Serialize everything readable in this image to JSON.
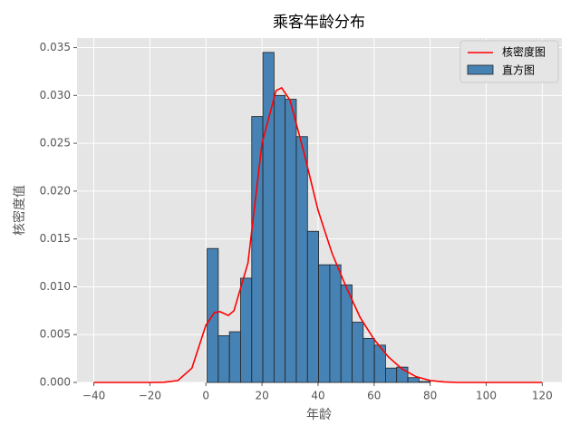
{
  "chart_data": {
    "type": "histogram",
    "title": "乘客年龄分布",
    "xlabel": "年龄",
    "ylabel": "核密度值",
    "xlim": [
      -46,
      127
    ],
    "ylim": [
      0,
      0.036
    ],
    "xticks": [
      {
        "value": -40,
        "label": "−40"
      },
      {
        "value": -20,
        "label": "−20"
      },
      0,
      20,
      40,
      60,
      80,
      100,
      120
    ],
    "yticks": [
      {
        "value": 0,
        "label": "0.000"
      },
      {
        "value": 0.005,
        "label": "0.005"
      },
      {
        "value": 0.01,
        "label": "0.010"
      },
      {
        "value": 0.015,
        "label": "0.015"
      },
      {
        "value": 0.02,
        "label": "0.020"
      },
      {
        "value": 0.025,
        "label": "0.025"
      },
      {
        "value": 0.03,
        "label": "0.030"
      },
      {
        "value": 0.035,
        "label": "0.035"
      }
    ],
    "grid": true,
    "legend": "upper right",
    "hist": {
      "name": "直方图",
      "color": "#4682b4",
      "bins": [
        0.42,
        4.399,
        8.378,
        12.357,
        16.336,
        20.315,
        24.294,
        28.273,
        32.252,
        36.231,
        40.21,
        44.189,
        48.168,
        52.147,
        56.126,
        60.105,
        64.084,
        68.063,
        72.042,
        76.021,
        80.0
      ],
      "values": [
        0.014,
        0.0049,
        0.0053,
        0.0109,
        0.0278,
        0.0345,
        0.03,
        0.0296,
        0.0257,
        0.0158,
        0.0123,
        0.0123,
        0.0102,
        0.0063,
        0.0046,
        0.0039,
        0.0015,
        0.0016,
        0.0005,
        0.0001
      ]
    },
    "kde": {
      "name": "核密度图",
      "color": "#ff0000",
      "x": [
        -40,
        -35,
        -30,
        -25,
        -20,
        -15,
        -10,
        -5,
        0,
        3,
        5,
        8,
        10,
        15,
        20,
        25,
        27,
        30,
        35,
        40,
        45,
        50,
        55,
        60,
        65,
        70,
        75,
        80,
        85,
        90,
        100,
        110,
        120
      ],
      "values": [
        0,
        0,
        0,
        0,
        0,
        2e-05,
        0.0002,
        0.0015,
        0.006,
        0.0073,
        0.0074,
        0.007,
        0.0075,
        0.0125,
        0.025,
        0.0305,
        0.0308,
        0.0295,
        0.024,
        0.018,
        0.0135,
        0.01,
        0.0068,
        0.0045,
        0.0027,
        0.0014,
        0.0006,
        0.0002,
        5e-05,
        0,
        0,
        0,
        0
      ]
    }
  }
}
